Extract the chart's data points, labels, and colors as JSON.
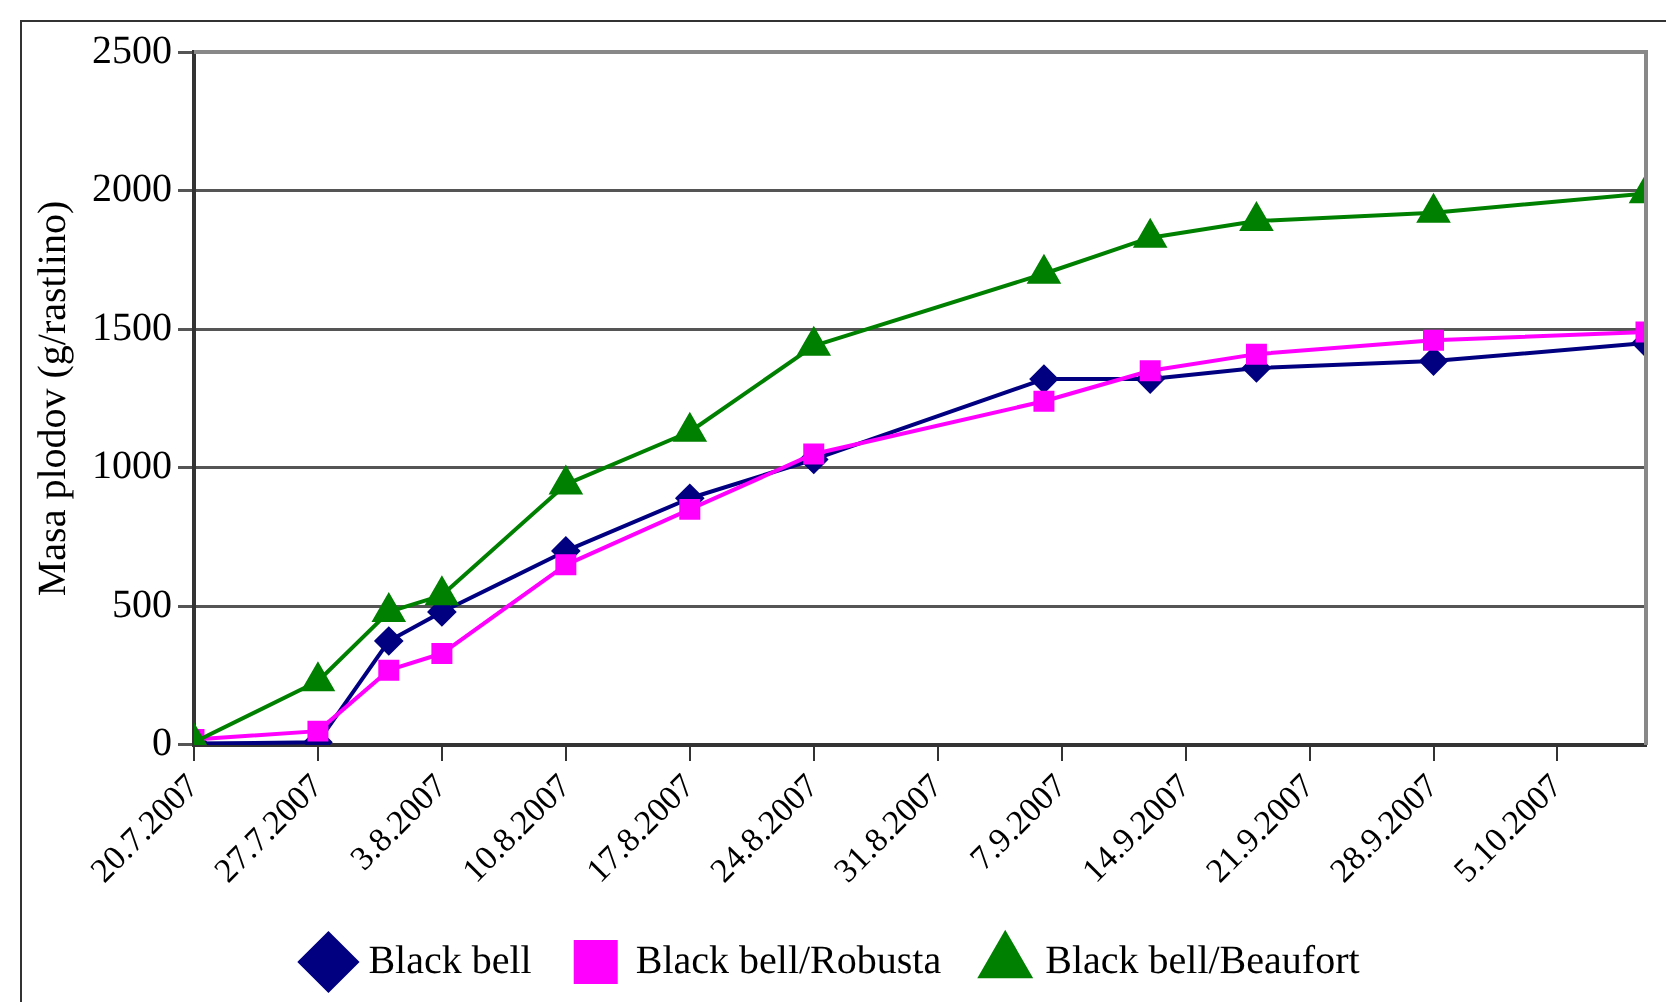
{
  "chart_data": {
    "type": "line",
    "ylabel": "Masa plodov (g/rastlino)",
    "x": [
      "2007-07-20",
      "2007-07-27",
      "2007-07-31",
      "2007-08-03",
      "2007-08-10",
      "2007-08-17",
      "2007-08-24",
      "2007-09-06",
      "2007-09-12",
      "2007-09-18",
      "2007-09-28",
      "2007-10-10"
    ],
    "series": [
      {
        "name": "Black bell",
        "color": "#000080",
        "marker": "diamond",
        "values": [
          5,
          10,
          375,
          480,
          700,
          890,
          1030,
          1320,
          1320,
          1360,
          1385,
          1450
        ]
      },
      {
        "name": "Black bell/Robusta",
        "color": "#ff00ff",
        "marker": "square",
        "values": [
          20,
          50,
          270,
          330,
          650,
          850,
          1050,
          1240,
          1350,
          1410,
          1460,
          1490
        ]
      },
      {
        "name": "Black bell/Beaufort",
        "color": "#008000",
        "marker": "triangle",
        "values": [
          10,
          230,
          480,
          540,
          940,
          1130,
          1440,
          1700,
          1830,
          1890,
          1920,
          1990
        ]
      }
    ],
    "xlim": [
      "2007-07-20",
      "2007-10-10"
    ],
    "xticks": [
      {
        "value": "2007-07-20",
        "label": "20.7.2007"
      },
      {
        "value": "2007-07-27",
        "label": "27.7.2007"
      },
      {
        "value": "2007-08-03",
        "label": "3.8.2007"
      },
      {
        "value": "2007-08-10",
        "label": "10.8.2007"
      },
      {
        "value": "2007-08-17",
        "label": "17.8.2007"
      },
      {
        "value": "2007-08-24",
        "label": "24.8.2007"
      },
      {
        "value": "2007-08-31",
        "label": "31.8.2007"
      },
      {
        "value": "2007-09-07",
        "label": "7.9.2007"
      },
      {
        "value": "2007-09-14",
        "label": "14.9.2007"
      },
      {
        "value": "2007-09-21",
        "label": "21.9.2007"
      },
      {
        "value": "2007-09-28",
        "label": "28.9.2007"
      },
      {
        "value": "2007-10-05",
        "label": "5.10.2007"
      }
    ],
    "ylim": [
      0,
      2500
    ],
    "yticks": [
      0,
      500,
      1000,
      1500,
      2000,
      2500
    ],
    "grid": "y",
    "legend": "bottom",
    "line_style": "solid"
  }
}
